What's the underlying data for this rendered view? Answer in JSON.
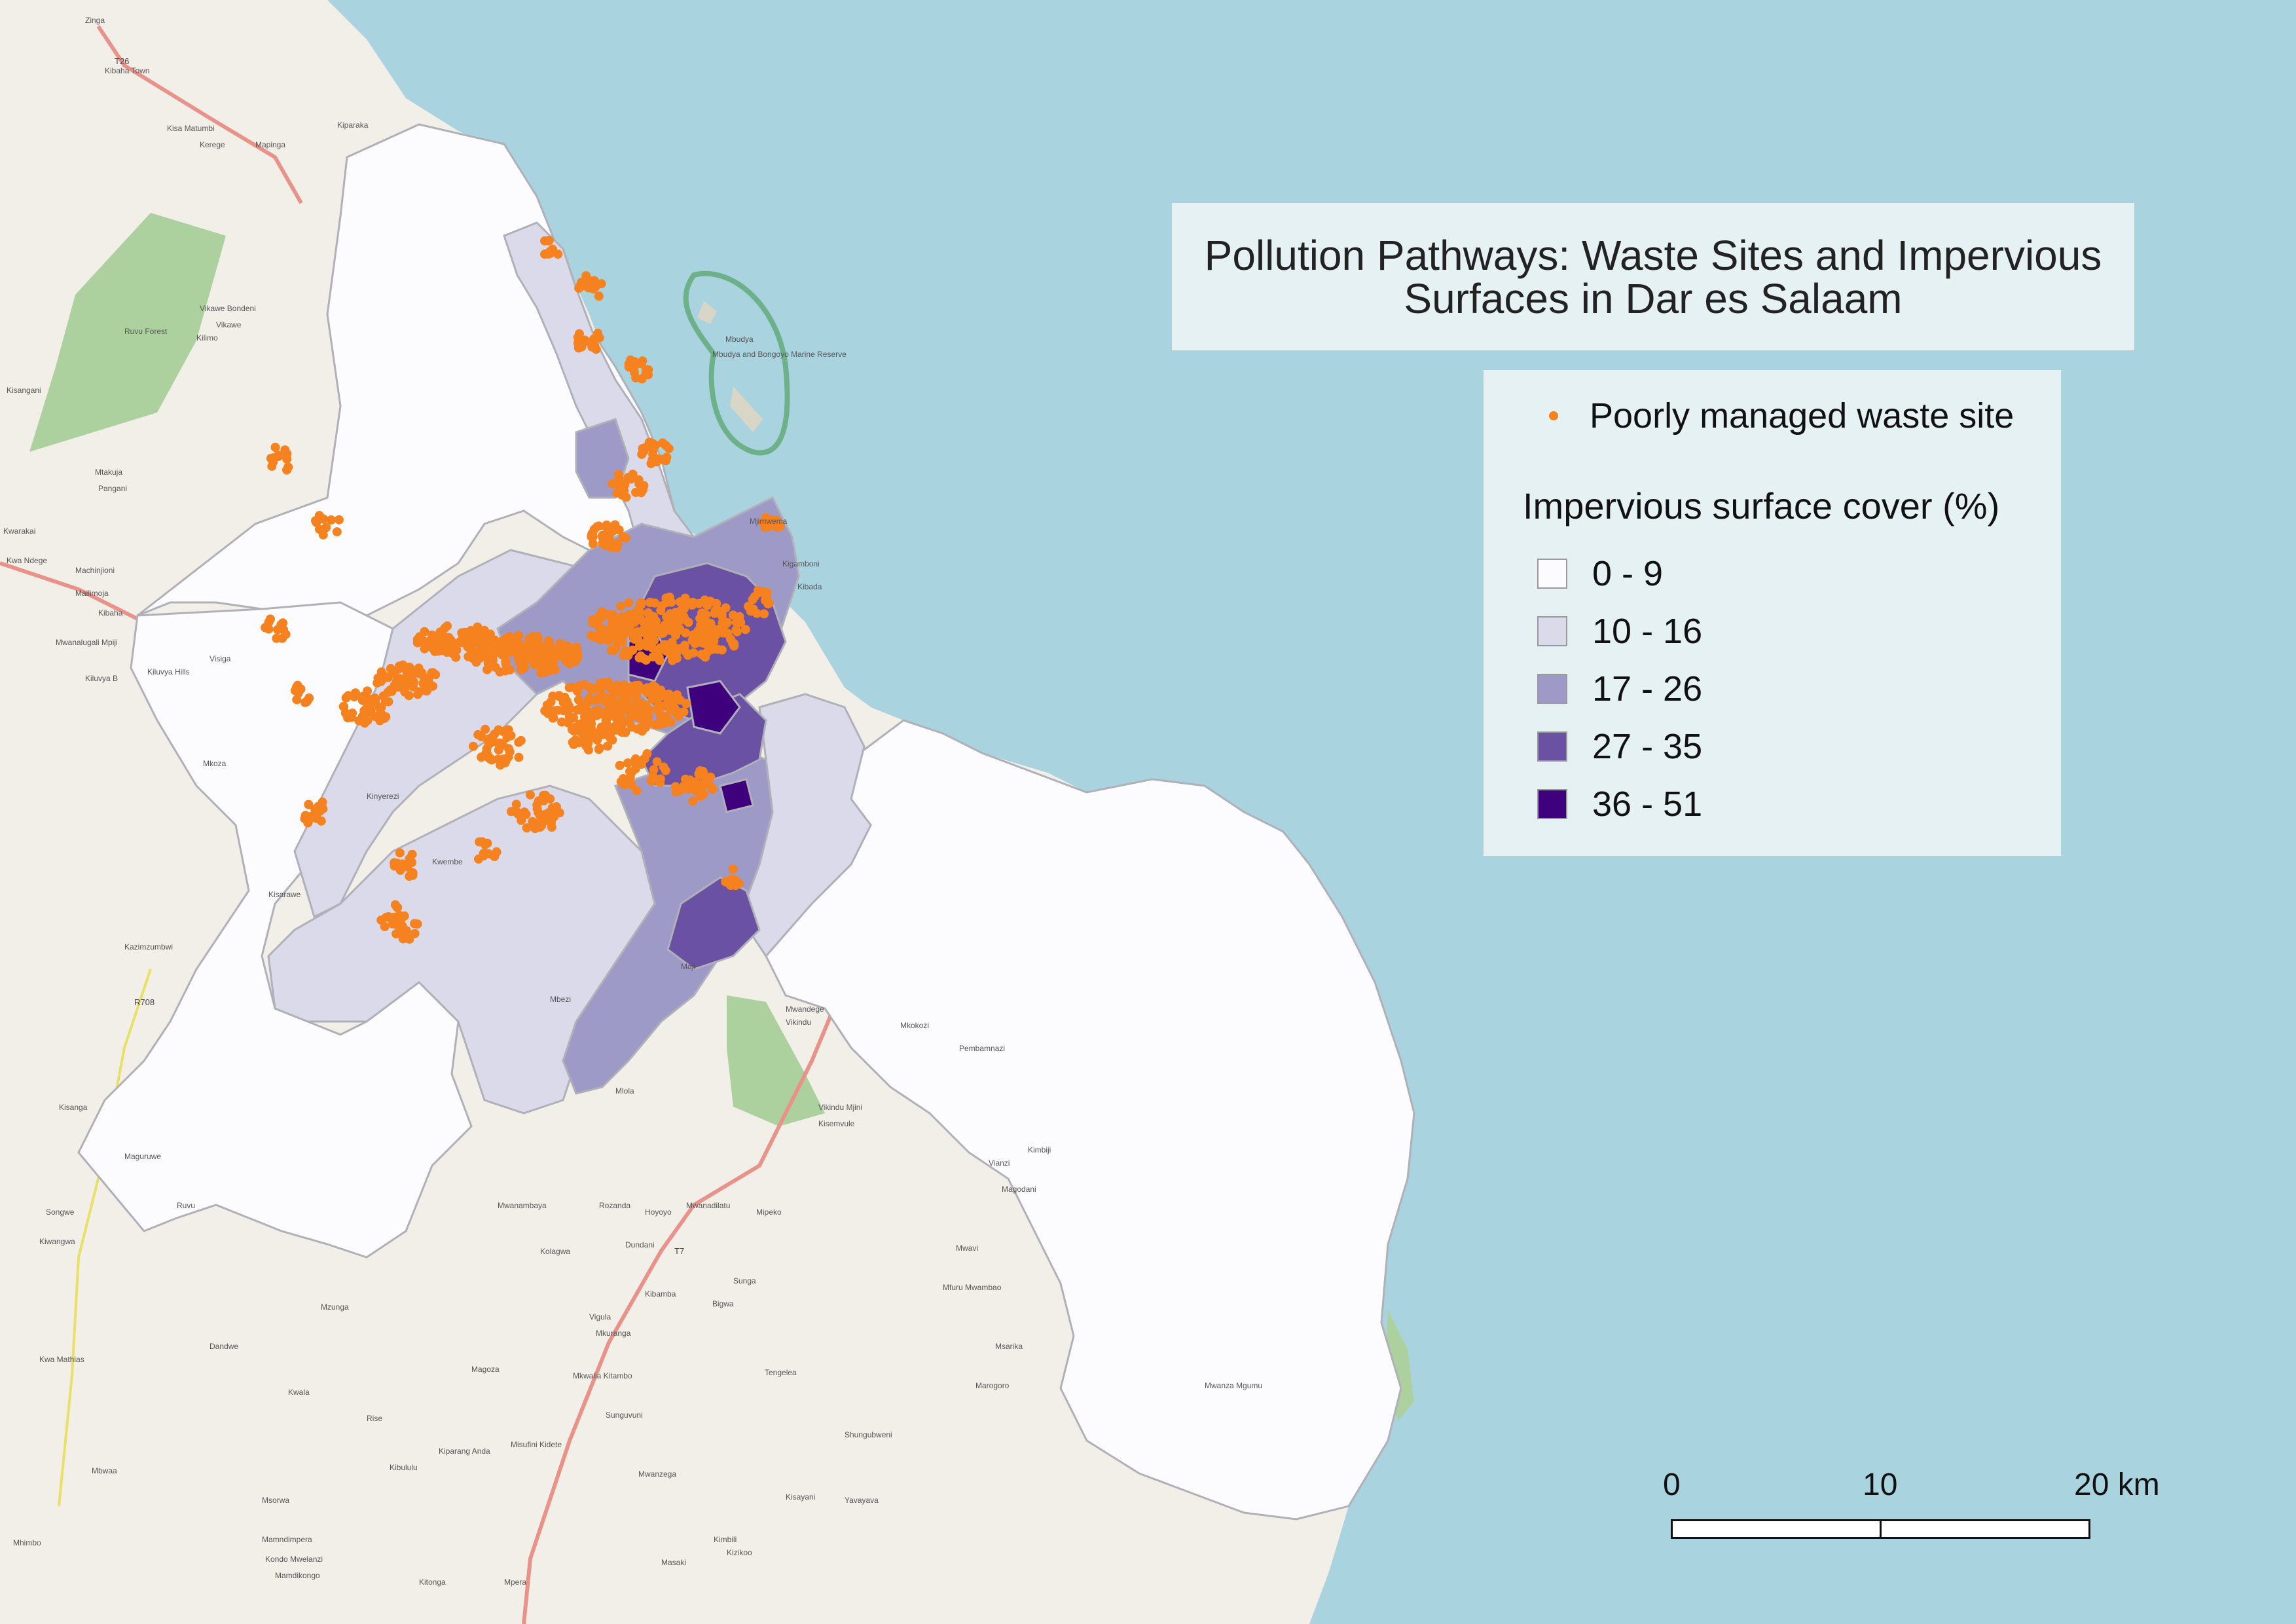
{
  "title": "Pollution Pathways: Waste Sites and Impervious Surfaces in Dar es Salaam",
  "legend": {
    "point_label": "Poorly managed waste site",
    "point_color": "#f5821f",
    "choropleth_heading": "Impervious surface cover (%)",
    "classes": [
      {
        "label": "0 - 9",
        "color": "#fcfbfd"
      },
      {
        "label": "10 - 16",
        "color": "#dadaeb"
      },
      {
        "label": "17 - 26",
        "color": "#9e9ac8"
      },
      {
        "label": "27 - 35",
        "color": "#6a51a3"
      },
      {
        "label": "36 - 51",
        "color": "#3f007d"
      }
    ]
  },
  "scale_bar": {
    "ticks": [
      "0",
      "10",
      "20 km"
    ]
  },
  "basemap": {
    "sea_color": "#a9d3df",
    "land_color": "#f2efe9",
    "park_color": "#add19e",
    "road_color": "#e8928a",
    "places": [
      "Zinga",
      "Kiparaka",
      "Kisa Matumbi",
      "Kerege",
      "Mapinga",
      "Vikawe Bondeni",
      "Vikawe",
      "Ruvu Forest",
      "Kilimo",
      "Mtakuja",
      "Pangani",
      "Kisangani",
      "Kwarakai",
      "Kwa Ndege",
      "Machinjioni",
      "Mailimoja",
      "Kibaha",
      "Kiluvya B",
      "Kiluvya Hills",
      "Mwanalugali Mpiji",
      "Visiga",
      "Mkoza",
      "Kisarawe",
      "Kazimzumbwi",
      "Kisanga",
      "Maguruwe",
      "Songwe",
      "Kibaha Town",
      "Mbudya",
      "Mbudya and Bongoyo Marine Reserve",
      "Mjimwema",
      "Kigamboni",
      "Kibada",
      "Mkokozi",
      "Pembamnazi",
      "Mwandege",
      "Vikindu",
      "Vikindu Mjini",
      "Kisemvule",
      "Mipeko",
      "Rozanda",
      "Mwanadilatu",
      "Mwanambaya",
      "Hoyoyo",
      "Kolagwa",
      "Dundani",
      "Kibamba",
      "Bigwa",
      "Vigula",
      "Mkuranga",
      "Mkwalia Kitambo",
      "Sunguvuni",
      "Tengelea",
      "Magoza",
      "Rise",
      "Kibululu",
      "Kiparang Anda",
      "Misufini Kidete",
      "Mwanzega",
      "Kimbili",
      "Kizikoo",
      "Kitonga",
      "Mpera",
      "Mamdikongo",
      "Mamndimpera",
      "Kondo Mwelanzi",
      "Msorwa",
      "Kisayani",
      "Shungubweni",
      "Yavayava",
      "Marogoro",
      "Msarika",
      "Mfuru Mwambao",
      "Mwavi",
      "Magodani",
      "Vianzi",
      "Kimbiji",
      "Mwanza Mgumu",
      "Mbwaa",
      "Mhimbo",
      "Dandwe",
      "Mzunga",
      "Kwala",
      "Ruvu",
      "Mbezi",
      "Mlola",
      "Maji",
      "Sunga",
      "Masaki",
      "Kiwangwa",
      "Kwa Mathias",
      "Kwembe",
      "Kinyerezi"
    ]
  },
  "road_labels": [
    "T26",
    "R708",
    "T7"
  ]
}
